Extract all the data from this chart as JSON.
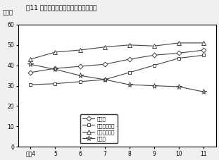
{
  "title": "囱11 高等学校卒業者の進学率・就職率",
  "ylabel": "（％）",
  "x_labels": [
    "平成4",
    "5",
    "6",
    "7",
    "8",
    "9",
    "10",
    "11"
  ],
  "x_values": [
    4,
    5,
    6,
    7,
    8,
    9,
    10,
    11
  ],
  "ylim": [
    0,
    60
  ],
  "yticks": [
    0,
    10,
    20,
    30,
    40,
    50,
    60
  ],
  "series": [
    {
      "label": "進学率",
      "values": [
        36.5,
        38.5,
        39.5,
        40.5,
        43.0,
        45.0,
        46.0,
        47.5
      ],
      "marker": "D",
      "markersize": 3.5,
      "color": "#444444",
      "markerfilled": false
    },
    {
      "label": "進学率（男）",
      "values": [
        30.5,
        31.0,
        32.0,
        33.0,
        36.5,
        40.0,
        43.5,
        45.0
      ],
      "marker": "s",
      "markersize": 3.5,
      "color": "#444444",
      "markerfilled": false
    },
    {
      "label": "進学率（女）",
      "values": [
        43.0,
        46.5,
        47.5,
        49.0,
        50.0,
        49.5,
        51.0,
        51.0
      ],
      "marker": "^",
      "markersize": 4.5,
      "color": "#444444",
      "markerfilled": false
    },
    {
      "label": "就職率",
      "values": [
        40.5,
        38.0,
        35.0,
        33.0,
        30.5,
        30.0,
        29.5,
        27.0
      ],
      "marker": "*",
      "markersize": 5.5,
      "color": "#444444",
      "markerfilled": false
    }
  ],
  "background_color": "#f0f0f0",
  "axes_facecolor": "#ffffff"
}
